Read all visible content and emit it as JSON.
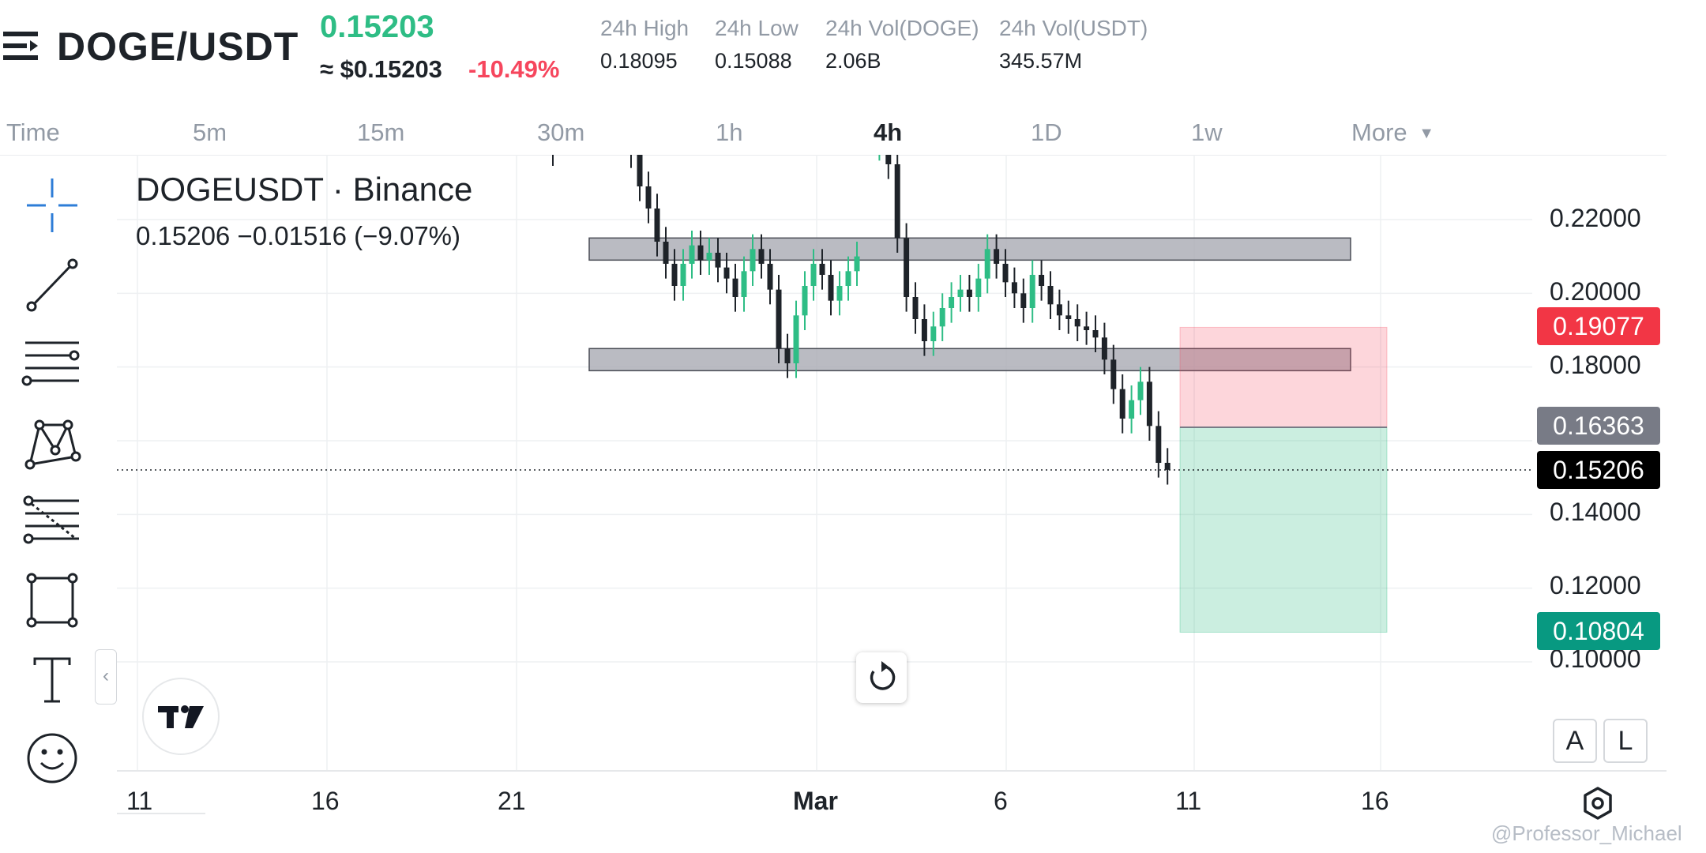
{
  "header": {
    "pair": "DOGE/USDT",
    "last_price": "0.15203",
    "approx_price": "≈ $0.15203",
    "change_pct": "-10.49%",
    "stats": [
      {
        "label": "24h High",
        "value": "0.18095"
      },
      {
        "label": "24h Low",
        "value": "0.15088"
      },
      {
        "label": "24h Vol(DOGE)",
        "value": "2.06B"
      },
      {
        "label": "24h Vol(USDT)",
        "value": "345.57M"
      }
    ]
  },
  "timeframes": {
    "items": [
      "Time",
      "5m",
      "15m",
      "30m",
      "1h",
      "4h",
      "1D",
      "1w",
      "More"
    ],
    "active": "4h"
  },
  "toolbar": {
    "icons": [
      "crosshair-icon",
      "trend-line-icon",
      "horizontal-lines-icon",
      "pattern-icon",
      "fibonacci-icon",
      "rectangle-icon",
      "text-icon",
      "emoji-icon"
    ]
  },
  "legend": {
    "title": "DOGEUSDT · Binance",
    "ohlc": "0.15206  −0.01516 (−9.07%)"
  },
  "price_axis": [
    "0.22000",
    "0.20000",
    "0.18000",
    "0.14000",
    "0.12000",
    "0.10000"
  ],
  "price_tags": {
    "stop": "0.19077",
    "entry": "0.16363",
    "current": "0.15206",
    "target": "0.10804"
  },
  "date_axis": [
    "11",
    "16",
    "21",
    "Mar",
    "6",
    "11",
    "16"
  ],
  "scale_buttons": {
    "auto": "A",
    "log": "L"
  },
  "watermark": "@Professor_Michael",
  "colors": {
    "up": "#2ebd85",
    "down": "#1e2329",
    "stop_zone": "#f6465d",
    "target_zone": "#2ebd85",
    "zone_box": "#a9aab3"
  },
  "chart_data": {
    "type": "candlestick",
    "symbol": "DOGEUSDT",
    "interval": "4h",
    "ylim": [
      0.092,
      0.245
    ],
    "zones": [
      {
        "name": "resistance",
        "low": 0.209,
        "high": 0.215
      },
      {
        "name": "support",
        "low": 0.179,
        "high": 0.185
      }
    ],
    "long_position": {
      "stop": 0.19077,
      "entry": 0.16363,
      "target": 0.10804
    },
    "current_price": 0.15206,
    "close_path": [
      [
        0.245,
        0.238,
        0.229,
        0.223,
        0.214,
        0.208,
        0.202,
        0.208,
        0.213,
        0.209,
        0.211,
        0.207,
        0.204,
        0.199,
        0.206,
        0.212,
        0.208,
        0.201,
        0.185,
        0.181,
        0.194,
        0.202,
        0.208,
        0.205,
        0.198,
        0.202,
        0.206,
        0.21
      ],
      [
        0.24,
        0.244,
        0.235,
        0.215,
        0.199,
        0.193,
        0.187,
        0.191,
        0.196,
        0.199,
        0.201,
        0.199,
        0.204,
        0.212,
        0.208,
        0.203,
        0.2,
        0.196,
        0.205,
        0.202,
        0.197,
        0.194,
        0.193,
        0.191,
        0.19,
        0.188,
        0.182,
        0.174,
        0.166,
        0.171,
        0.176,
        0.164,
        0.154,
        0.1521
      ]
    ]
  }
}
